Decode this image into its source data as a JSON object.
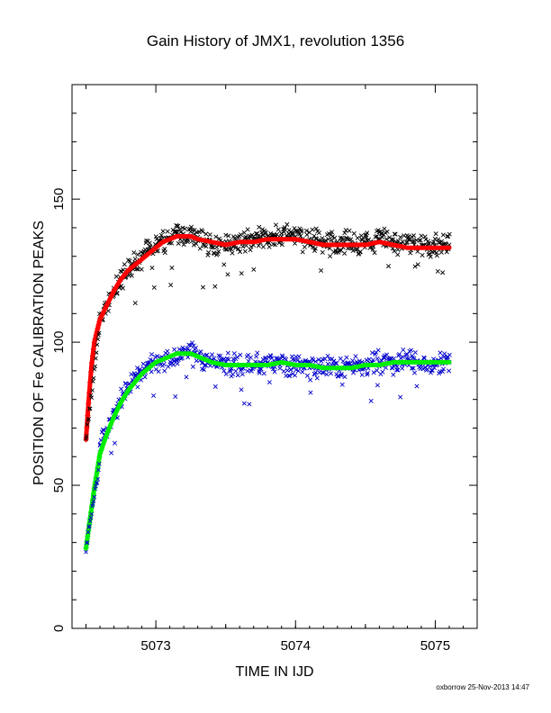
{
  "chart_data": {
    "type": "scatter",
    "title": "Gain History of JMX1, revolution 1356",
    "xlabel": "TIME IN IJD",
    "ylabel": "POSITION OF Fe CALIBRATION PEAKS",
    "xlim": [
      5072.4,
      5075.3
    ],
    "ylim": [
      0,
      190
    ],
    "xticks": [
      5073,
      5074,
      5075
    ],
    "yticks": [
      0,
      50,
      100,
      150
    ],
    "grid": false,
    "series": [
      {
        "kind": "scatter",
        "marker": "x",
        "color": "#000000",
        "x": [
          5072.6,
          5072.65,
          5072.7,
          5072.75,
          5072.8,
          5072.85,
          5072.9,
          5072.95,
          5073.0,
          5073.05,
          5073.1,
          5073.15,
          5073.2,
          5073.25,
          5073.3,
          5073.35,
          5073.4,
          5073.45,
          5073.5,
          5073.55,
          5073.6,
          5073.65,
          5073.7,
          5073.75,
          5073.8,
          5073.85,
          5073.9,
          5073.95,
          5074.0,
          5074.05,
          5074.1,
          5074.15,
          5074.2,
          5074.25,
          5074.3,
          5074.35,
          5074.4,
          5074.45,
          5074.5,
          5074.55,
          5074.6,
          5074.65,
          5074.7,
          5074.75,
          5074.8,
          5074.85,
          5074.9,
          5074.95,
          5075.0,
          5075.05,
          5075.1
        ],
        "y": [
          108,
          113,
          118,
          122,
          125,
          128,
          130,
          132,
          134,
          135,
          136,
          138,
          137,
          137,
          136,
          135,
          134,
          134,
          134,
          135,
          135,
          136,
          137,
          137,
          137,
          137,
          137,
          138,
          137,
          136,
          136,
          136,
          135,
          134,
          135,
          135,
          135,
          134,
          135,
          134,
          136,
          136,
          135,
          134,
          135,
          134,
          134,
          134,
          134,
          134,
          134
        ]
      },
      {
        "kind": "scatter",
        "marker": "x",
        "color": "#0000cc",
        "x": [
          5072.6,
          5072.65,
          5072.7,
          5072.75,
          5072.8,
          5072.85,
          5072.9,
          5072.95,
          5073.0,
          5073.05,
          5073.1,
          5073.15,
          5073.2,
          5073.25,
          5073.3,
          5073.35,
          5073.4,
          5073.45,
          5073.5,
          5073.55,
          5073.6,
          5073.65,
          5073.7,
          5073.75,
          5073.8,
          5073.85,
          5073.9,
          5073.95,
          5074.0,
          5074.05,
          5074.1,
          5074.15,
          5074.2,
          5074.25,
          5074.3,
          5074.35,
          5074.4,
          5074.45,
          5074.5,
          5074.55,
          5074.6,
          5074.65,
          5074.7,
          5074.75,
          5074.8,
          5074.85,
          5074.9,
          5074.95,
          5075.0,
          5075.05,
          5075.1
        ],
        "y": [
          64,
          70,
          75,
          80,
          84,
          87,
          89,
          91,
          93,
          94,
          95,
          96,
          96,
          96,
          95,
          94,
          93,
          93,
          92,
          92,
          92,
          92,
          92,
          93,
          93,
          93,
          93,
          92,
          92,
          92,
          91,
          91,
          91,
          91,
          91,
          91,
          92,
          92,
          92,
          93,
          93,
          93,
          93,
          93,
          93,
          93,
          93,
          93,
          93,
          93,
          93
        ]
      },
      {
        "kind": "line",
        "marker": "+",
        "color": "#ff0000",
        "x": [
          5072.5,
          5072.52,
          5072.54,
          5072.56,
          5072.58,
          5072.6,
          5072.65,
          5072.7,
          5072.75,
          5072.8,
          5072.85,
          5072.9,
          5072.95,
          5073.0,
          5073.05,
          5073.1,
          5073.15,
          5073.2,
          5073.25,
          5073.3,
          5073.4,
          5073.5,
          5073.6,
          5073.7,
          5073.8,
          5073.9,
          5074.0,
          5074.1,
          5074.2,
          5074.3,
          5074.4,
          5074.5,
          5074.6,
          5074.7,
          5074.8,
          5074.9,
          5075.0,
          5075.1
        ],
        "y": [
          66,
          80,
          92,
          100,
          104,
          108,
          113,
          118,
          122,
          125,
          127,
          129,
          131,
          133,
          135,
          136,
          137,
          137,
          137,
          136,
          135,
          134,
          135,
          135,
          136,
          136,
          136,
          135,
          134,
          134,
          134,
          134,
          135,
          134,
          133,
          133,
          133,
          133
        ]
      },
      {
        "kind": "line",
        "marker": "+",
        "color": "#00ee00",
        "x": [
          5072.5,
          5072.52,
          5072.54,
          5072.56,
          5072.58,
          5072.6,
          5072.65,
          5072.7,
          5072.75,
          5072.8,
          5072.85,
          5072.9,
          5072.95,
          5073.0,
          5073.05,
          5073.1,
          5073.15,
          5073.2,
          5073.25,
          5073.3,
          5073.4,
          5073.5,
          5073.6,
          5073.7,
          5073.8,
          5073.9,
          5074.0,
          5074.1,
          5074.2,
          5074.3,
          5074.4,
          5074.5,
          5074.6,
          5074.7,
          5074.8,
          5074.9,
          5075.0,
          5075.1
        ],
        "y": [
          28,
          35,
          42,
          49,
          55,
          61,
          68,
          74,
          79,
          83,
          86,
          89,
          91,
          93,
          94,
          95,
          96,
          96,
          96,
          95,
          93,
          92,
          92,
          92,
          92,
          93,
          92,
          92,
          91,
          91,
          91,
          92,
          92,
          93,
          93,
          93,
          93,
          93
        ]
      }
    ]
  },
  "footer": "oxborrow 25-Nov-2013 14:47"
}
